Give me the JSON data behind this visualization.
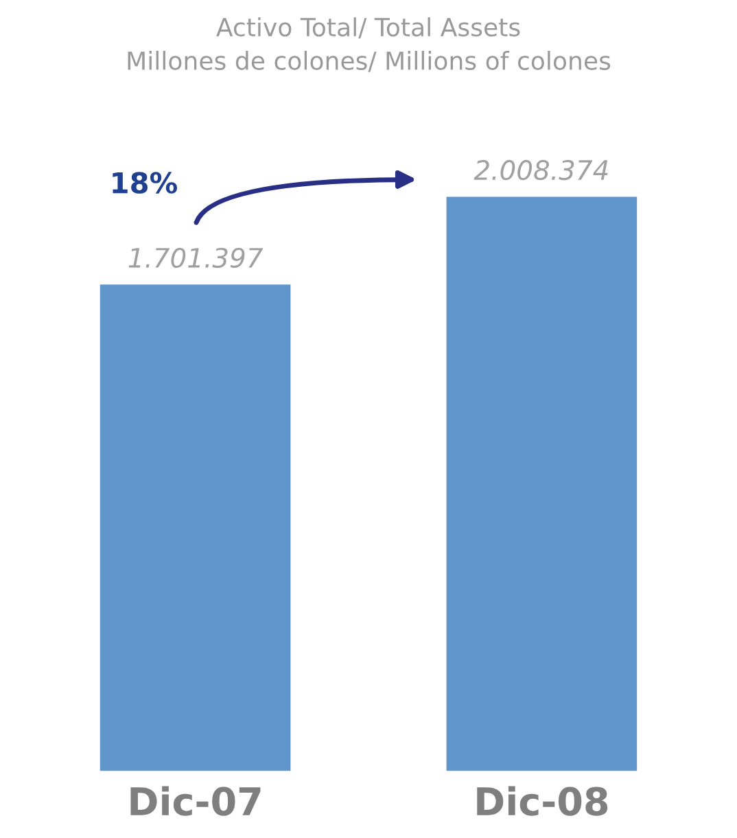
{
  "chart_data": {
    "type": "bar",
    "title": "Activo Total/ Total Assets",
    "subtitle": "Millones de colones/ Millions of colones",
    "categories": [
      "Dic-07",
      "Dic-08"
    ],
    "values": [
      1701397,
      2008374
    ],
    "value_labels": [
      "1.701.397",
      "2.008.374"
    ],
    "color": "#6196cc",
    "annotations": [
      "18%"
    ]
  }
}
